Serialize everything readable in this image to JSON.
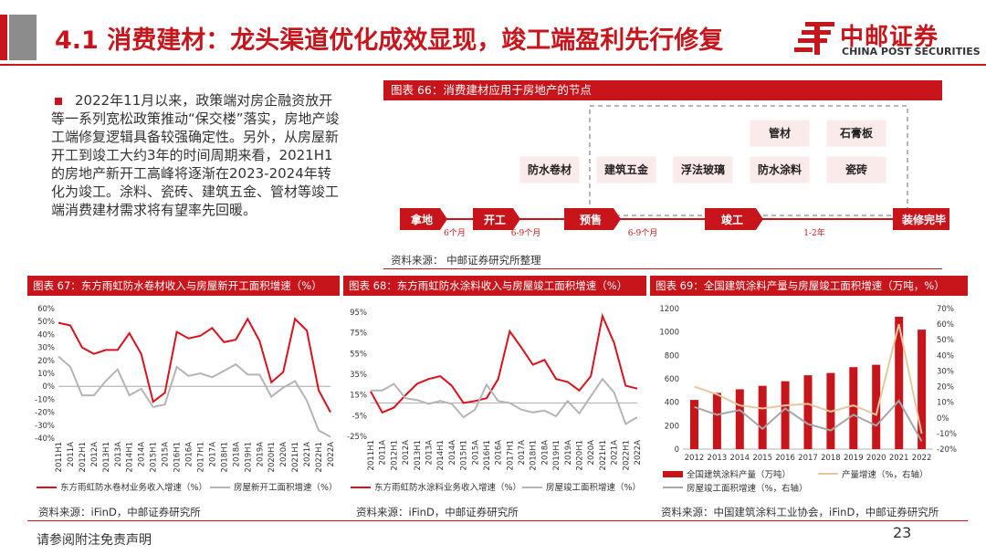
{
  "header": {
    "title": "4.1 消费建材：龙头渠道优化成效显现，竣工端盈利先行修复",
    "logo_cn": "中邮证券",
    "logo_en": "CHINA POST SECURITIES"
  },
  "intro": {
    "text": "2022年11月以来，政策端对房企融资放开等一系列宽松政策推动“保交楼”落实，房地产竣工端修复逻辑具备较强确定性。另外，从房屋新开工到竣工大约3年的时间周期来看，2021H1的房地产新开工高峰将逐渐在2023-2024年转化为竣工。涂料、瓷砖、建筑五金、管材等竣工端消费建材需求将有望率先回暖。"
  },
  "fig66": {
    "title": "图表 66：消费建材应用于房地产的节点",
    "stages": [
      "拿地",
      "开工",
      "预售",
      "竣工",
      "装修完毕"
    ],
    "intervals": [
      "6个月",
      "6-9个月",
      "6-9个月",
      "1-2年"
    ],
    "materials_row1": [
      "管材",
      "石膏板"
    ],
    "materials_row2": [
      "防水卷材",
      "建筑五金",
      "浮法玻璃",
      "防水涂料",
      "瓷砖"
    ],
    "source": "资料来源：    中邮证券研究所整理"
  },
  "footer": {
    "left": "请参阅附注免责声明",
    "page": "23"
  },
  "chart_data": [
    {
      "type": "line",
      "title": "图表 67：东方雨虹防水卷材收入与房屋新开工面积增速（%）",
      "x": [
        "2011H1",
        "2011A",
        "2012H1",
        "2012A",
        "2013H1",
        "2013A",
        "2014H1",
        "2014A",
        "2015H1",
        "2015A",
        "2016H1",
        "2016A",
        "2017H1",
        "2017A",
        "2018H1",
        "2018A",
        "2019H1",
        "2019A",
        "2020H1",
        "2020A",
        "2021H1",
        "2021A",
        "2022H1",
        "2022A"
      ],
      "series": [
        {
          "name": "东方雨虹防水卷材业务收入增速（%）",
          "color": "#d9121b",
          "values": [
            49,
            47,
            30,
            25,
            28,
            28,
            41,
            25,
            -12,
            -5,
            42,
            37,
            39,
            45,
            34,
            36,
            52,
            35,
            3,
            11,
            52,
            43,
            -3,
            -20
          ]
        },
        {
          "name": "房屋新开工面积增速（%）",
          "color": "#b4b4b4",
          "values": [
            23,
            15,
            -7,
            -7,
            4,
            13,
            -7,
            -2,
            -16,
            -14,
            15,
            8,
            10,
            7,
            12,
            17,
            9,
            9,
            -8,
            -1,
            4,
            -11,
            -34,
            -39
          ]
        }
      ],
      "ylim": [
        -40,
        60
      ],
      "yticks": [
        "60%",
        "50%",
        "40%",
        "30%",
        "20%",
        "10%",
        "0%",
        "-10%",
        "-20%",
        "-30%",
        "-40%"
      ],
      "source": "资料来源：iFinD，中邮证券研究所"
    },
    {
      "type": "line",
      "title": "图表 68：东方雨虹防水涂料收入与房屋竣工面积增速（%）",
      "x": [
        "2011H1",
        "2011A",
        "2012H1",
        "2012A",
        "2013H1",
        "2013A",
        "2014H1",
        "2014A",
        "2015H1",
        "2015A",
        "2016H1",
        "2016A",
        "2017H1",
        "2017A",
        "2018H1",
        "2018A",
        "2019H1",
        "2019A",
        "2020H1",
        "2020A",
        "2021H1",
        "2021A",
        "2022H1",
        "2022A"
      ],
      "series": [
        {
          "name": "东方雨虹防水涂料业务收入增速（%）",
          "color": "#d9121b",
          "values": [
            12,
            -10,
            -5,
            8,
            20,
            25,
            28,
            18,
            0,
            2,
            5,
            25,
            75,
            58,
            40,
            45,
            25,
            22,
            13,
            28,
            91,
            63,
            18,
            15
          ]
        },
        {
          "name": "房屋竣工面积增速（%）",
          "color": "#b4b4b4",
          "values": [
            13,
            13,
            20,
            5,
            3,
            -1,
            2,
            -1,
            -15,
            -7,
            19,
            2,
            0,
            -7,
            -10,
            -8,
            -14,
            2,
            -11,
            7,
            25,
            11,
            -22,
            -15
          ]
        }
      ],
      "ylim": [
        -35,
        95
      ],
      "yticks": [
        "95%",
        "75%",
        "55%",
        "35%",
        "15%",
        "-5%",
        "-25%"
      ],
      "source": "资料来源：iFinD，中邮证券研究所"
    },
    {
      "type": "bar",
      "title": "图表 69：全国建筑涂料产量与房屋竣工面积增速（万吨，%）",
      "categories": [
        "2012",
        "2013",
        "2014",
        "2015",
        "2016",
        "2017",
        "2018",
        "2019",
        "2020",
        "2021",
        "2022"
      ],
      "series": [
        {
          "name": "全国建筑涂料产量（万吨）",
          "color": "#c8151c",
          "type": "bar",
          "axis": "left",
          "values": [
            420,
            480,
            510,
            540,
            580,
            630,
            650,
            700,
            720,
            1130,
            1020
          ]
        },
        {
          "name": "产量增速（%，右轴）",
          "color": "#e6c8a0",
          "type": "line",
          "axis": "right",
          "values": [
            20,
            15,
            8,
            6,
            8,
            9,
            4,
            8,
            2,
            60,
            -10
          ]
        },
        {
          "name": "房屋竣工面积增速（%，右轴）",
          "color": "#a6a6a6",
          "type": "line",
          "axis": "right",
          "values": [
            7,
            2,
            5,
            -7,
            6,
            -4,
            -8,
            2,
            -5,
            11,
            -15
          ]
        }
      ],
      "ylim": [
        0,
        1200
      ],
      "y2lim": [
        -20,
        70
      ],
      "yticks": [
        "1200",
        "1000",
        "800",
        "600",
        "400",
        "200",
        "0"
      ],
      "y2ticks": [
        "70%",
        "60%",
        "50%",
        "40%",
        "30%",
        "20%",
        "10%",
        "0%",
        "-10%",
        "-20%"
      ],
      "source": "资料来源：中国建筑涂料工业协会，iFinD，中邮证券研究所"
    }
  ]
}
